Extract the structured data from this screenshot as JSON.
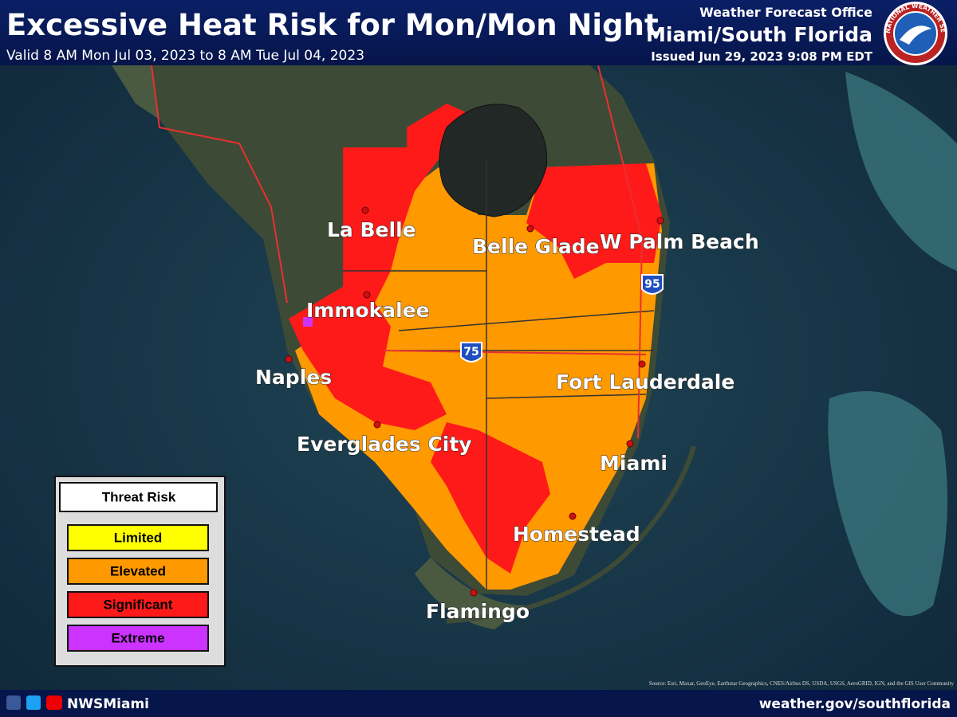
{
  "header": {
    "title": "Excessive Heat Risk for Mon/Mon Night",
    "valid": "Valid 8 AM Mon Jul 03, 2023 to 8 AM Tue Jul 04, 2023",
    "office_line1": "Weather Forecast Office",
    "office_line2": "Miami/South Florida",
    "issued": "Issued Jun 29, 2023 9:08 PM EDT",
    "logo_text": "NATIONAL WEATHER SERVICE"
  },
  "map": {
    "cities": [
      "La Belle",
      "Belle Glade",
      "W Palm Beach",
      "Immokalee",
      "Naples",
      "Fort Lauderdale",
      "Everglades City",
      "Miami",
      "Homestead",
      "Flamingo"
    ],
    "shields": [
      "75",
      "95"
    ],
    "source": "Source: Esri, Maxar, GeoEye, Earthstar Geographics, CNES/Airbus DS, USDA, USGS, AeroGRID, IGN, and the GIS User Community"
  },
  "legend": {
    "title": "Threat Risk",
    "items": [
      {
        "label": "Limited",
        "color": "#ffff00"
      },
      {
        "label": "Elevated",
        "color": "#ff9900"
      },
      {
        "label": "Significant",
        "color": "#ff1a1a"
      },
      {
        "label": "Extreme",
        "color": "#cc33ff"
      }
    ]
  },
  "footer": {
    "handle": "NWSMiami",
    "url": "weather.gov/southflorida"
  }
}
